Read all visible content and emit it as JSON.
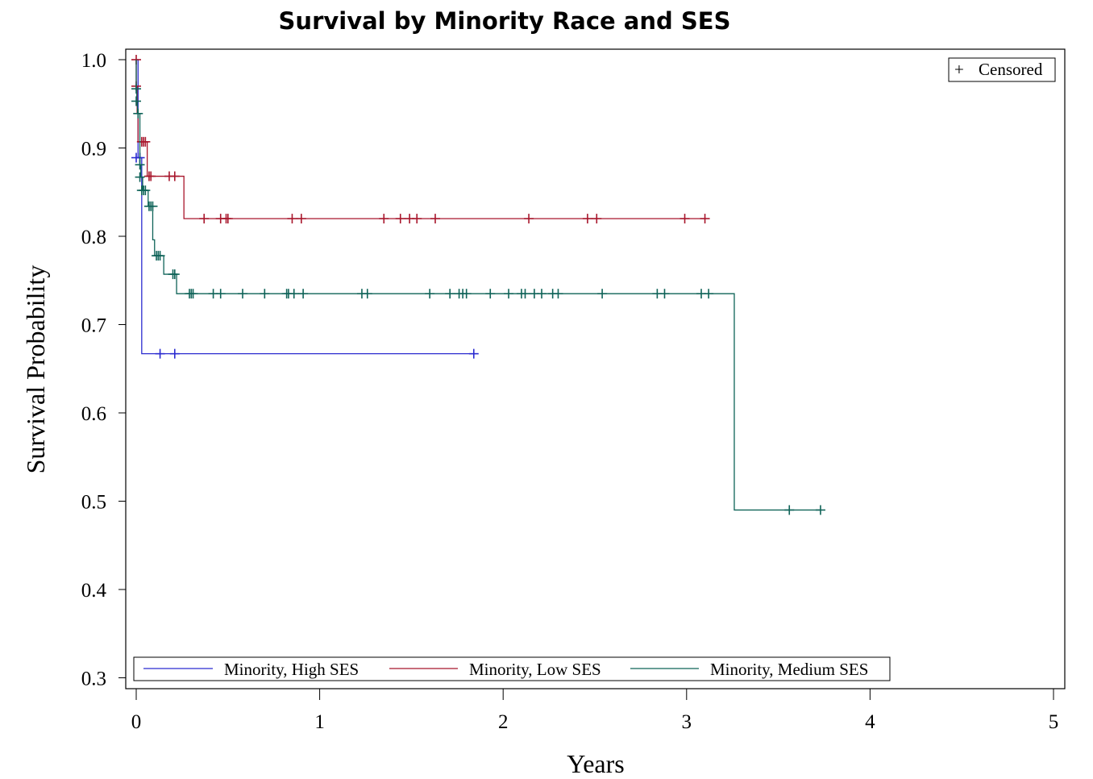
{
  "chart_data": {
    "type": "line",
    "subtype": "kaplan-meier-step",
    "title": "Survival by Minority Race and SES",
    "xlabel": "Years",
    "ylabel": "Survival Probability",
    "xlim": [
      0,
      5
    ],
    "ylim": [
      0.3,
      1.0
    ],
    "xticks": [
      0,
      1,
      2,
      3,
      4,
      5
    ],
    "xtick_labels": [
      "0",
      "1",
      "2",
      "3",
      "4",
      "5"
    ],
    "yticks": [
      0.3,
      0.4,
      0.5,
      0.6,
      0.7,
      0.8,
      0.9,
      1.0
    ],
    "ytick_labels": [
      "0.3",
      "0.4",
      "0.5",
      "0.6",
      "0.7",
      "0.8",
      "0.9",
      "1.0"
    ],
    "grid": false,
    "censor_legend": {
      "symbol": "+",
      "label": "Censored",
      "placement": "top-right"
    },
    "legend_placement": "bottom-inside",
    "series": [
      {
        "name": "Minority, High SES",
        "color": "#2b2bd0",
        "steps": [
          [
            0,
            1.0
          ],
          [
            0.01,
            0.889
          ],
          [
            0.03,
            0.667
          ],
          [
            1.84,
            0.667
          ]
        ],
        "censored": [
          [
            0.0,
            0.889
          ],
          [
            0.02,
            0.889
          ],
          [
            0.13,
            0.667
          ],
          [
            0.21,
            0.667
          ],
          [
            1.84,
            0.667
          ]
        ]
      },
      {
        "name": "Minority, Low SES",
        "color": "#a8162c",
        "steps": [
          [
            0,
            1.0
          ],
          [
            0.0,
            0.97
          ],
          [
            0.005,
            0.939
          ],
          [
            0.01,
            0.907
          ],
          [
            0.06,
            0.868
          ],
          [
            0.26,
            0.82
          ],
          [
            3.1,
            0.82
          ]
        ],
        "censored": [
          [
            0.0,
            1.0
          ],
          [
            0.0,
            0.97
          ],
          [
            0.03,
            0.907
          ],
          [
            0.04,
            0.907
          ],
          [
            0.05,
            0.907
          ],
          [
            0.07,
            0.868
          ],
          [
            0.08,
            0.868
          ],
          [
            0.18,
            0.868
          ],
          [
            0.21,
            0.868
          ],
          [
            0.37,
            0.82
          ],
          [
            0.46,
            0.82
          ],
          [
            0.49,
            0.82
          ],
          [
            0.5,
            0.82
          ],
          [
            0.85,
            0.82
          ],
          [
            0.9,
            0.82
          ],
          [
            1.35,
            0.82
          ],
          [
            1.44,
            0.82
          ],
          [
            1.49,
            0.82
          ],
          [
            1.53,
            0.82
          ],
          [
            1.63,
            0.82
          ],
          [
            2.14,
            0.82
          ],
          [
            2.46,
            0.82
          ],
          [
            2.51,
            0.82
          ],
          [
            2.99,
            0.82
          ],
          [
            3.1,
            0.82
          ]
        ]
      },
      {
        "name": "Minority, Medium SES",
        "color": "#0f6358",
        "steps": [
          [
            0,
            1.0
          ],
          [
            0.0,
            0.967
          ],
          [
            0.003,
            0.953
          ],
          [
            0.007,
            0.939
          ],
          [
            0.02,
            0.881
          ],
          [
            0.025,
            0.867
          ],
          [
            0.035,
            0.852
          ],
          [
            0.065,
            0.834
          ],
          [
            0.09,
            0.796
          ],
          [
            0.1,
            0.778
          ],
          [
            0.15,
            0.757
          ],
          [
            0.22,
            0.735
          ],
          [
            3.26,
            0.49
          ],
          [
            3.73,
            0.49
          ]
        ],
        "censored": [
          [
            0.0,
            0.967
          ],
          [
            0.0,
            0.953
          ],
          [
            0.01,
            0.939
          ],
          [
            0.02,
            0.881
          ],
          [
            0.02,
            0.867
          ],
          [
            0.03,
            0.852
          ],
          [
            0.04,
            0.852
          ],
          [
            0.05,
            0.852
          ],
          [
            0.07,
            0.834
          ],
          [
            0.08,
            0.834
          ],
          [
            0.09,
            0.834
          ],
          [
            0.11,
            0.778
          ],
          [
            0.12,
            0.778
          ],
          [
            0.13,
            0.778
          ],
          [
            0.2,
            0.757
          ],
          [
            0.21,
            0.757
          ],
          [
            0.29,
            0.735
          ],
          [
            0.3,
            0.735
          ],
          [
            0.31,
            0.735
          ],
          [
            0.42,
            0.735
          ],
          [
            0.46,
            0.735
          ],
          [
            0.58,
            0.735
          ],
          [
            0.7,
            0.735
          ],
          [
            0.82,
            0.735
          ],
          [
            0.83,
            0.735
          ],
          [
            0.86,
            0.735
          ],
          [
            0.91,
            0.735
          ],
          [
            1.23,
            0.735
          ],
          [
            1.26,
            0.735
          ],
          [
            1.6,
            0.735
          ],
          [
            1.71,
            0.735
          ],
          [
            1.76,
            0.735
          ],
          [
            1.78,
            0.735
          ],
          [
            1.8,
            0.735
          ],
          [
            1.93,
            0.735
          ],
          [
            2.03,
            0.735
          ],
          [
            2.1,
            0.735
          ],
          [
            2.12,
            0.735
          ],
          [
            2.17,
            0.735
          ],
          [
            2.21,
            0.735
          ],
          [
            2.27,
            0.735
          ],
          [
            2.3,
            0.735
          ],
          [
            2.54,
            0.735
          ],
          [
            2.84,
            0.735
          ],
          [
            2.88,
            0.735
          ],
          [
            3.08,
            0.735
          ],
          [
            3.12,
            0.735
          ],
          [
            3.56,
            0.49
          ],
          [
            3.73,
            0.49
          ]
        ]
      }
    ]
  }
}
